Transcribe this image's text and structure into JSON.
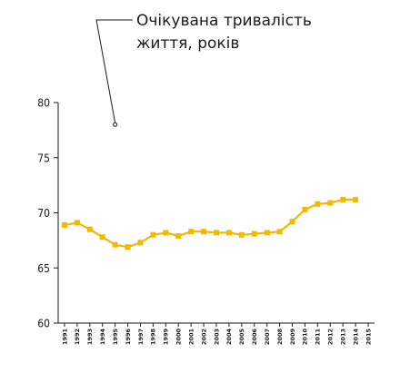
{
  "chart_data": {
    "type": "line",
    "title": "",
    "xlabel": "",
    "ylabel": "",
    "ylim": [
      60,
      80
    ],
    "yticks": [
      60,
      65,
      70,
      75,
      80
    ],
    "grid": false,
    "legend": "none",
    "annotation": {
      "lines": [
        "Очікувана тривалість",
        "життя, років"
      ],
      "points_to": {
        "year": "1995",
        "value": 78
      }
    },
    "x_tick_labels": [
      "1991",
      "1992",
      "1993",
      "1994",
      "1995",
      "1996",
      "1997",
      "1998",
      "1999",
      "2000",
      "2001",
      "2002",
      "2003",
      "2004",
      "2005",
      "2006",
      "2007",
      "2008",
      "2009",
      "2010",
      "2011",
      "2012",
      "2013",
      "2014",
      "2015"
    ],
    "series": [
      {
        "color": "#f5b800",
        "marker": "square",
        "x": [
          "1991",
          "1992",
          "1993",
          "1994",
          "1995",
          "1996",
          "1997",
          "1998",
          "1999",
          "2000",
          "2001",
          "2002",
          "2003",
          "2004",
          "2005",
          "2006",
          "2007",
          "2008",
          "2009",
          "2010",
          "2011",
          "2012",
          "2013",
          "2014"
        ],
        "values": [
          68.9,
          69.1,
          68.5,
          67.8,
          67.1,
          66.9,
          67.3,
          68.0,
          68.2,
          67.9,
          68.3,
          68.3,
          68.2,
          68.2,
          68.0,
          68.1,
          68.2,
          68.3,
          69.2,
          70.3,
          70.8,
          70.9,
          71.2,
          71.2
        ]
      }
    ]
  }
}
